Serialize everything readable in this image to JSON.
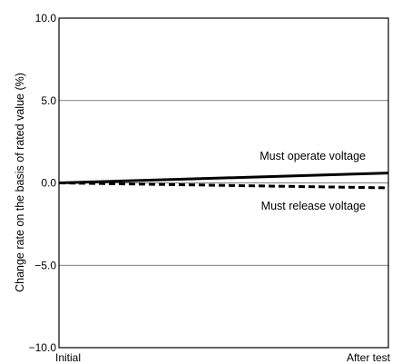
{
  "chart_data": {
    "type": "line",
    "ylabel": "Change rate on the basis of rated value (%)",
    "categories": [
      "Initial",
      "After test"
    ],
    "ylim": [
      -10.0,
      10.0
    ],
    "yticks": [
      "10.0",
      "5.0",
      "0.0",
      "−5.0",
      "−10.0"
    ],
    "ytick_values": [
      10,
      5,
      0,
      -5,
      -10
    ],
    "grid": true,
    "series": [
      {
        "name": "Must operate voltage",
        "values": [
          0.0,
          0.6
        ],
        "style": "solid"
      },
      {
        "name": "Must release voltage",
        "values": [
          0.0,
          -0.3
        ],
        "style": "dashed"
      }
    ]
  }
}
